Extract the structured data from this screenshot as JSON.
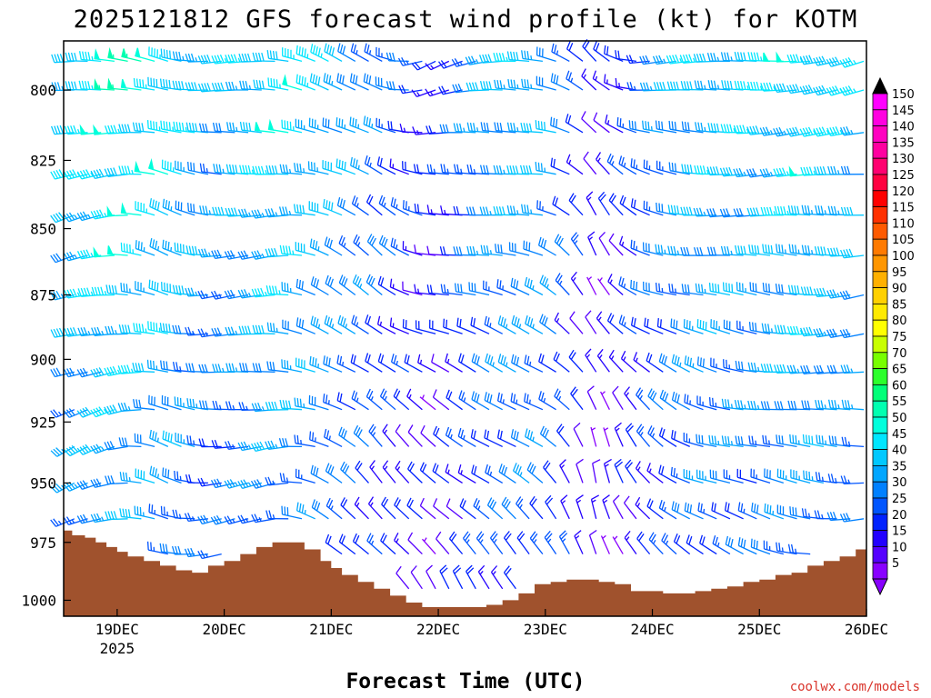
{
  "chart_data": {
    "type": "wind-barb-profile",
    "title": "2025121812 GFS forecast wind profile (kt) for KOTM",
    "xlabel": "Forecast Time (UTC)",
    "ylabel": "",
    "credit": "coolwx.com/models",
    "x_ticks": [
      {
        "label": "19DEC",
        "sublabel": "2025",
        "day": 1
      },
      {
        "label": "20DEC",
        "day": 2
      },
      {
        "label": "21DEC",
        "day": 3
      },
      {
        "label": "22DEC",
        "day": 4
      },
      {
        "label": "23DEC",
        "day": 5
      },
      {
        "label": "24DEC",
        "day": 6
      },
      {
        "label": "25DEC",
        "day": 7
      },
      {
        "label": "26DEC",
        "day": 8
      }
    ],
    "xlim_days": [
      0.5,
      8.0
    ],
    "y_ticks": [
      800,
      825,
      850,
      875,
      900,
      925,
      950,
      975,
      1000
    ],
    "ylim_hpa": [
      783,
      1007
    ],
    "ground_pressure_hpa": [
      [
        0.5,
        970
      ],
      [
        0.58,
        972
      ],
      [
        0.7,
        973
      ],
      [
        0.8,
        975
      ],
      [
        0.9,
        977
      ],
      [
        1.0,
        979
      ],
      [
        1.1,
        981
      ],
      [
        1.25,
        983
      ],
      [
        1.4,
        985
      ],
      [
        1.55,
        987
      ],
      [
        1.7,
        988
      ],
      [
        1.85,
        985
      ],
      [
        2.0,
        983
      ],
      [
        2.15,
        980
      ],
      [
        2.3,
        977
      ],
      [
        2.45,
        975
      ],
      [
        2.6,
        975
      ],
      [
        2.75,
        978
      ],
      [
        2.9,
        983
      ],
      [
        3.0,
        986
      ],
      [
        3.1,
        989
      ],
      [
        3.25,
        992
      ],
      [
        3.4,
        995
      ],
      [
        3.55,
        998
      ],
      [
        3.7,
        1001
      ],
      [
        3.85,
        1003
      ],
      [
        4.0,
        1003
      ],
      [
        4.15,
        1003
      ],
      [
        4.3,
        1003
      ],
      [
        4.45,
        1002
      ],
      [
        4.6,
        1000
      ],
      [
        4.75,
        997
      ],
      [
        4.9,
        993
      ],
      [
        5.05,
        992
      ],
      [
        5.2,
        991
      ],
      [
        5.35,
        991
      ],
      [
        5.5,
        992
      ],
      [
        5.65,
        993
      ],
      [
        5.8,
        996
      ],
      [
        5.95,
        996
      ],
      [
        6.1,
        997
      ],
      [
        6.25,
        997
      ],
      [
        6.4,
        996
      ],
      [
        6.55,
        995
      ],
      [
        6.7,
        994
      ],
      [
        6.85,
        992
      ],
      [
        7.0,
        991
      ],
      [
        7.15,
        989
      ],
      [
        7.3,
        988
      ],
      [
        7.45,
        985
      ],
      [
        7.6,
        983
      ],
      [
        7.75,
        981
      ],
      [
        7.9,
        978
      ],
      [
        8.0,
        978
      ]
    ],
    "wind_profile_hpa_levels": [
      790,
      800,
      815,
      830,
      845,
      860,
      875,
      890,
      905,
      920,
      935,
      950,
      965,
      980,
      995
    ],
    "wind_time_step_days": 0.125,
    "wind_keyframes": [
      {
        "day": 0.5,
        "speed_kt": 35,
        "dir_top_deg": 260,
        "dir_bottom_deg": 240
      },
      {
        "day": 1.0,
        "speed_kt": 45,
        "dir_top_deg": 270,
        "dir_bottom_deg": 250
      },
      {
        "day": 1.5,
        "speed_kt": 40,
        "dir_top_deg": 290,
        "dir_bottom_deg": 290
      },
      {
        "day": 2.0,
        "speed_kt": 30,
        "dir_top_deg": 270,
        "dir_bottom_deg": 260
      },
      {
        "day": 2.5,
        "speed_kt": 40,
        "dir_top_deg": 270,
        "dir_bottom_deg": 260
      },
      {
        "day": 3.0,
        "speed_kt": 35,
        "dir_top_deg": 290,
        "dir_bottom_deg": 300
      },
      {
        "day": 3.5,
        "speed_kt": 25,
        "dir_top_deg": 300,
        "dir_bottom_deg": 320
      },
      {
        "day": 4.0,
        "speed_kt": 15,
        "dir_top_deg": 250,
        "dir_bottom_deg": 330
      },
      {
        "day": 4.5,
        "speed_kt": 30,
        "dir_top_deg": 260,
        "dir_bottom_deg": 320
      },
      {
        "day": 5.0,
        "speed_kt": 35,
        "dir_top_deg": 270,
        "dir_bottom_deg": 320
      },
      {
        "day": 5.5,
        "speed_kt": 10,
        "dir_top_deg": 320,
        "dir_bottom_deg": 350
      },
      {
        "day": 6.0,
        "speed_kt": 25,
        "dir_top_deg": 270,
        "dir_bottom_deg": 330
      },
      {
        "day": 6.5,
        "speed_kt": 35,
        "dir_top_deg": 265,
        "dir_bottom_deg": 300
      },
      {
        "day": 7.0,
        "speed_kt": 35,
        "dir_top_deg": 265,
        "dir_bottom_deg": 290
      },
      {
        "day": 7.5,
        "speed_kt": 40,
        "dir_top_deg": 265,
        "dir_bottom_deg": 280
      },
      {
        "day": 8.0,
        "speed_kt": 35,
        "dir_top_deg": 260,
        "dir_bottom_deg": 270
      }
    ],
    "colorbar": {
      "units": "kt",
      "levels": [
        150,
        145,
        140,
        135,
        130,
        125,
        120,
        115,
        110,
        105,
        100,
        95,
        90,
        85,
        80,
        75,
        70,
        65,
        60,
        55,
        50,
        45,
        40,
        35,
        30,
        25,
        20,
        15,
        10,
        5
      ],
      "colors": [
        "#ff00ff",
        "#ff00e0",
        "#ff00c0",
        "#ff00a0",
        "#ff0070",
        "#ff0040",
        "#ff0000",
        "#ff3000",
        "#ff5a00",
        "#ff7a00",
        "#ff9600",
        "#ffb000",
        "#ffd000",
        "#ffea00",
        "#ffff00",
        "#c8ff00",
        "#78ff00",
        "#2cff2c",
        "#00ff78",
        "#00ffb0",
        "#00ffdc",
        "#00e6ff",
        "#00c8ff",
        "#00a6ff",
        "#0080ff",
        "#0055ff",
        "#0022ff",
        "#2200ff",
        "#5500ff",
        "#8800ff"
      ]
    }
  }
}
